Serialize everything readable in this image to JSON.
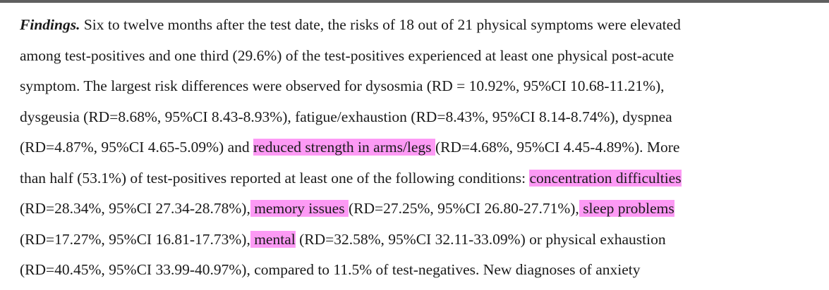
{
  "colors": {
    "highlight": "#fd9af5",
    "text": "#1a1a1a",
    "top_rule": "#5f5f5f"
  },
  "paragraph": {
    "lead": "Findings.",
    "lines": [
      [
        {
          "t": "Findings.",
          "lead": true
        },
        {
          "t": " Six to twelve months after the test date, the risks of 18 out of 21 physical symptoms were elevated"
        }
      ],
      [
        {
          "t": "among test-positives and one third (29.6%) of the test-positives experienced at least one physical post-acute"
        }
      ],
      [
        {
          "t": "symptom. The largest risk differences were observed for dysosmia (RD = 10.92%, 95%CI 10.68-11.21%),"
        }
      ],
      [
        {
          "t": "dysgeusia (RD=8.68%, 95%CI 8.43-8.93%), fatigue/exhaustion (RD=8.43%, 95%CI 8.14-8.74%), dyspnea"
        }
      ],
      [
        {
          "t": "(RD=4.87%, 95%CI 4.65-5.09%) and "
        },
        {
          "t": " reduced strength in arms/legs ",
          "hl": true
        },
        {
          "t": "(RD=4.68%, 95%CI 4.45-4.89%). More"
        }
      ],
      [
        {
          "t": "than half (53.1%) of test-positives reported at least one of the following conditions: "
        },
        {
          "t": "concentration difficulties",
          "hl": true
        }
      ],
      [
        {
          "t": "(RD=28.34%, 95%CI 27.34-28.78%),"
        },
        {
          "t": " memory issues ",
          "hl": true
        },
        {
          "t": "(RD=27.25%, 95%CI 26.80-27.71%),"
        },
        {
          "t": " sleep problems   ",
          "hl": true
        }
      ],
      [
        {
          "t": "(RD=17.27%, 95%CI 16.81-17.73%),"
        },
        {
          "t": " mental",
          "hl": true
        },
        {
          "t": " (RD=32.58%, 95%CI 32.11-33.09%) or physical exhaustion"
        }
      ],
      [
        {
          "t": "(RD=40.45%, 95%CI 33.99-40.97%), compared to 11.5% of test-negatives. New diagnoses of anxiety"
        }
      ]
    ]
  }
}
